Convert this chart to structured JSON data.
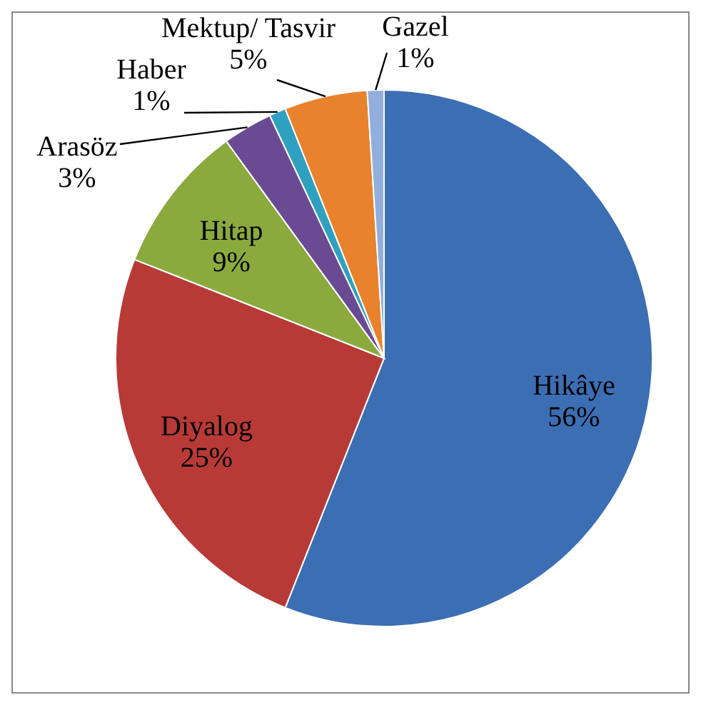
{
  "chart_data": {
    "type": "pie",
    "categories": [
      "Hikâye",
      "Diyalog",
      "Hitap",
      "Arasöz",
      "Haber",
      "Mektup/ Tasvir",
      "Gazel"
    ],
    "values": [
      56,
      25,
      9,
      3,
      1,
      5,
      1
    ],
    "value_labels": [
      "56%",
      "25%",
      "9%",
      "3%",
      "1%",
      "5%",
      "1%"
    ],
    "colors": [
      "#3c6eb4",
      "#b83a36",
      "#8aaa3e",
      "#6b4a94",
      "#2fa0c0",
      "#e8822c",
      "#92aedc"
    ]
  }
}
